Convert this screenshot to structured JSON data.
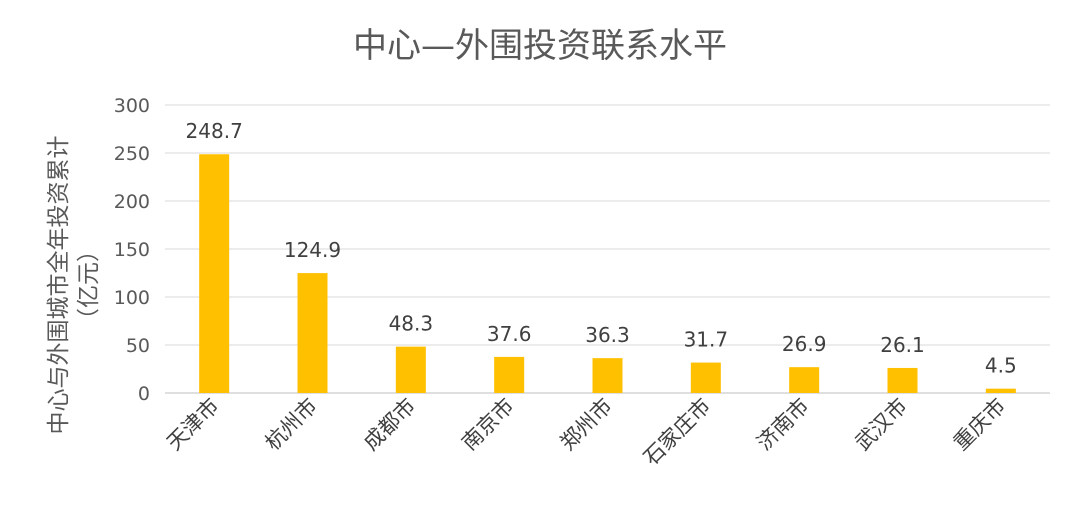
{
  "chart_data": {
    "type": "bar",
    "title": "中心—外围投资联系水平",
    "ylabel_line1": "中心与外围城市全年投资累计",
    "ylabel_line2": "（亿元）",
    "xlabel": "",
    "ylim": [
      0,
      300
    ],
    "yticks": [
      0,
      50,
      100,
      150,
      200,
      250,
      300
    ],
    "grid": true,
    "categories": [
      "天津市",
      "杭州市",
      "成都市",
      "南京市",
      "郑州市",
      "石家庄市",
      "济南市",
      "武汉市",
      "重庆市"
    ],
    "values": [
      248.7,
      124.9,
      48.3,
      37.6,
      36.3,
      31.7,
      26.9,
      26.1,
      4.5
    ],
    "value_labels": [
      "248.7",
      "124.9",
      "48.3",
      "37.6",
      "36.3",
      "31.7",
      "26.9",
      "26.1",
      "4.5"
    ],
    "bar_color": "#ffc000"
  }
}
